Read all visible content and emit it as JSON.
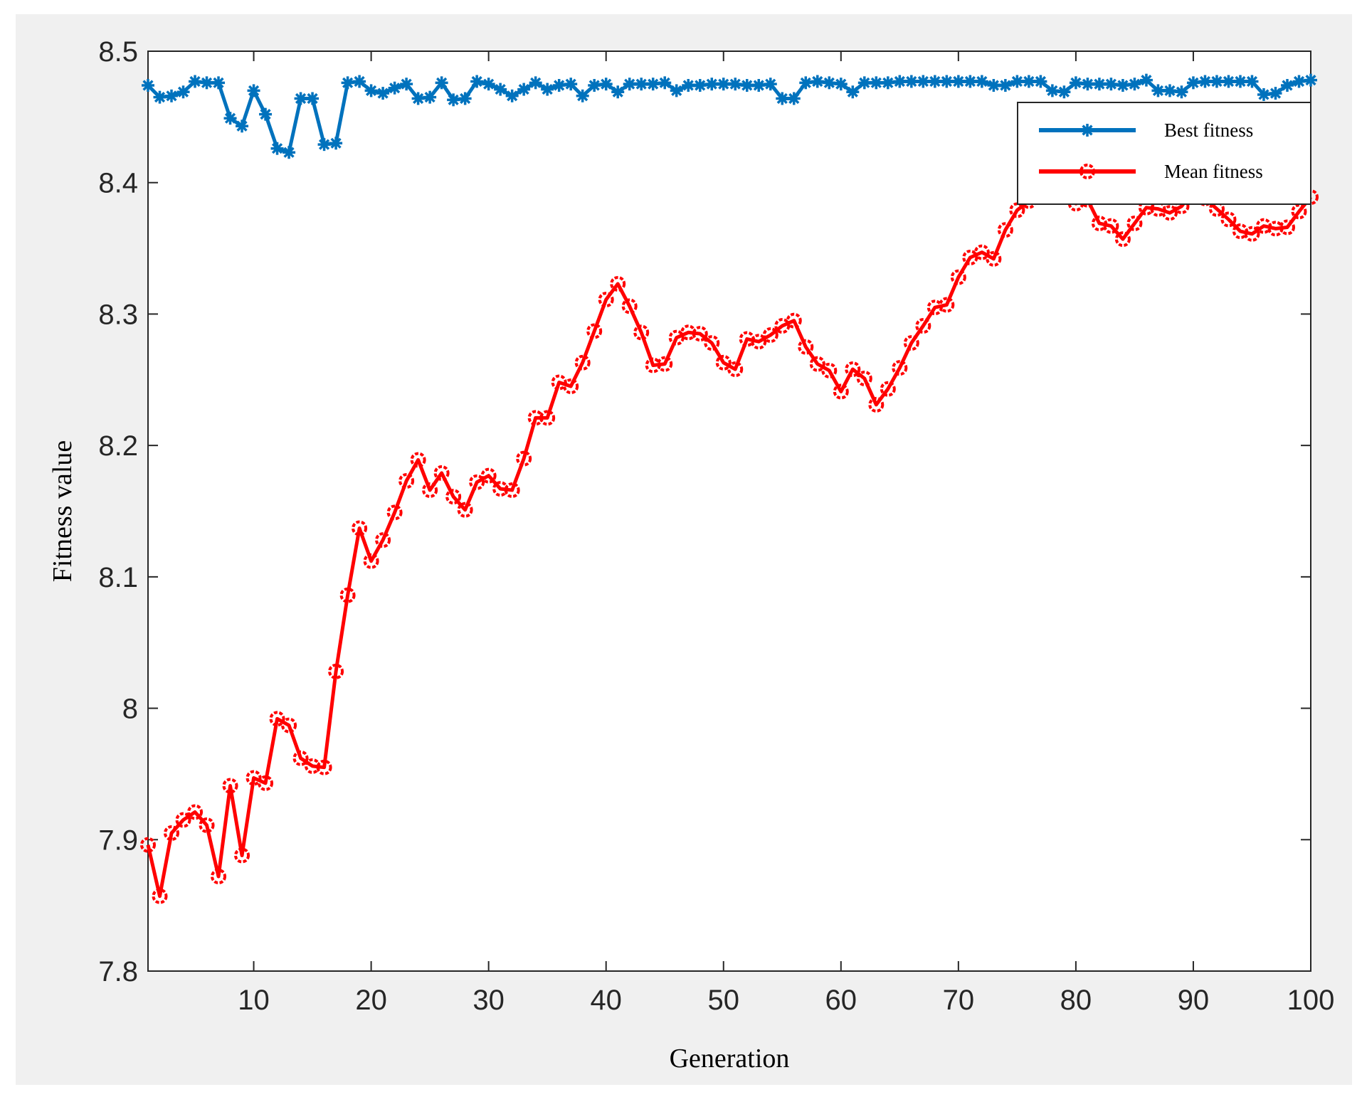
{
  "chart_data": {
    "type": "line",
    "xlabel": "Generation",
    "ylabel": "Fitness value",
    "xlim": [
      1,
      100
    ],
    "ylim": [
      7.8,
      8.5
    ],
    "xticks": [
      10,
      20,
      30,
      40,
      50,
      60,
      70,
      80,
      90,
      100
    ],
    "yticks": [
      7.8,
      7.9,
      8.0,
      8.1,
      8.2,
      8.3,
      8.4,
      8.5
    ],
    "ytick_labels": [
      "7.8",
      "7.9",
      "8",
      "8.1",
      "8.2",
      "8.3",
      "8.4",
      "8.5"
    ],
    "grid": false,
    "legend_position": "top-right",
    "x": [
      1,
      2,
      3,
      4,
      5,
      6,
      7,
      8,
      9,
      10,
      11,
      12,
      13,
      14,
      15,
      16,
      17,
      18,
      19,
      20,
      21,
      22,
      23,
      24,
      25,
      26,
      27,
      28,
      29,
      30,
      31,
      32,
      33,
      34,
      35,
      36,
      37,
      38,
      39,
      40,
      41,
      42,
      43,
      44,
      45,
      46,
      47,
      48,
      49,
      50,
      51,
      52,
      53,
      54,
      55,
      56,
      57,
      58,
      59,
      60,
      61,
      62,
      63,
      64,
      65,
      66,
      67,
      68,
      69,
      70,
      71,
      72,
      73,
      74,
      75,
      76,
      77,
      78,
      79,
      80,
      81,
      82,
      83,
      84,
      85,
      86,
      87,
      88,
      89,
      90,
      91,
      92,
      93,
      94,
      95,
      96,
      97,
      98,
      99,
      100
    ],
    "series": [
      {
        "name": "Best fitness",
        "color": "#0072bd",
        "marker": "asterisk",
        "values": [
          8.474,
          8.465,
          8.466,
          8.469,
          8.477,
          8.476,
          8.476,
          8.449,
          8.443,
          8.47,
          8.452,
          8.426,
          8.423,
          8.464,
          8.464,
          8.429,
          8.43,
          8.476,
          8.477,
          8.47,
          8.468,
          8.472,
          8.475,
          8.464,
          8.465,
          8.476,
          8.463,
          8.464,
          8.477,
          8.475,
          8.471,
          8.466,
          8.471,
          8.476,
          8.471,
          8.474,
          8.475,
          8.466,
          8.474,
          8.475,
          8.469,
          8.475,
          8.475,
          8.475,
          8.476,
          8.47,
          8.474,
          8.474,
          8.475,
          8.475,
          8.475,
          8.474,
          8.474,
          8.475,
          8.464,
          8.464,
          8.476,
          8.477,
          8.476,
          8.475,
          8.469,
          8.476,
          8.476,
          8.476,
          8.477,
          8.477,
          8.477,
          8.477,
          8.477,
          8.477,
          8.477,
          8.477,
          8.474,
          8.474,
          8.477,
          8.477,
          8.477,
          8.47,
          8.469,
          8.476,
          8.475,
          8.475,
          8.475,
          8.474,
          8.475,
          8.478,
          8.47,
          8.47,
          8.469,
          8.476,
          8.477,
          8.477,
          8.477,
          8.477,
          8.477,
          8.467,
          8.468,
          8.474,
          8.477,
          8.478
        ]
      },
      {
        "name": "Mean fitness",
        "color": "#ff0000",
        "marker": "circle",
        "values": [
          7.896,
          7.857,
          7.905,
          7.915,
          7.921,
          7.911,
          7.872,
          7.941,
          7.888,
          7.947,
          7.943,
          7.992,
          7.987,
          7.962,
          7.956,
          7.955,
          8.028,
          8.086,
          8.137,
          8.112,
          8.128,
          8.149,
          8.173,
          8.189,
          8.166,
          8.179,
          8.161,
          8.151,
          8.172,
          8.177,
          8.167,
          8.166,
          8.19,
          8.221,
          8.221,
          8.248,
          8.245,
          8.263,
          8.287,
          8.311,
          8.323,
          8.306,
          8.286,
          8.261,
          8.262,
          8.282,
          8.286,
          8.285,
          8.278,
          8.263,
          8.258,
          8.281,
          8.279,
          8.284,
          8.291,
          8.295,
          8.275,
          8.262,
          8.257,
          8.241,
          8.258,
          8.251,
          8.231,
          8.243,
          8.259,
          8.278,
          8.291,
          8.305,
          8.307,
          8.328,
          8.343,
          8.347,
          8.342,
          8.364,
          8.379,
          8.386,
          8.394,
          8.395,
          8.392,
          8.384,
          8.387,
          8.369,
          8.367,
          8.357,
          8.369,
          8.381,
          8.38,
          8.377,
          8.382,
          8.394,
          8.388,
          8.38,
          8.372,
          8.363,
          8.361,
          8.367,
          8.365,
          8.366,
          8.378,
          8.389
        ]
      }
    ]
  }
}
